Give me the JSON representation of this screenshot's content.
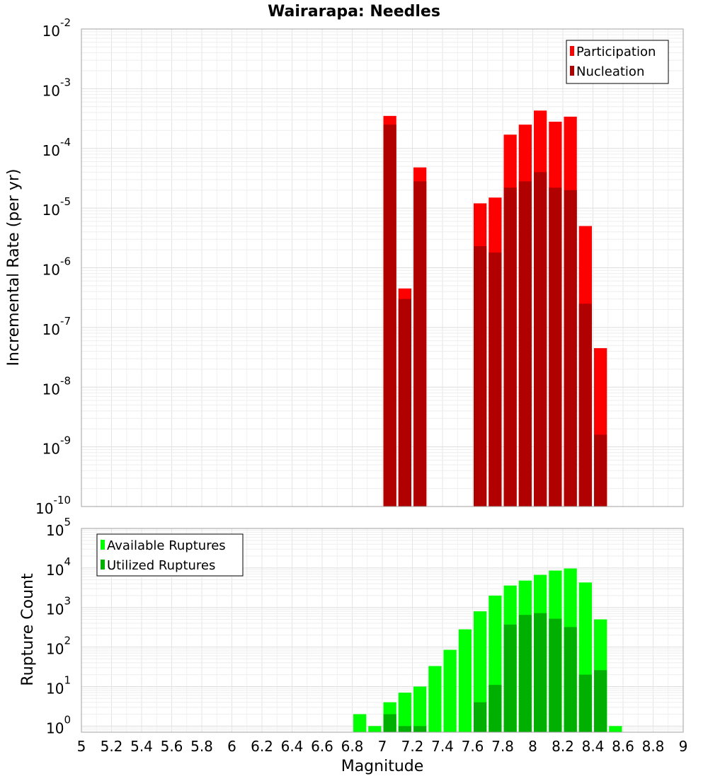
{
  "chart": {
    "title": "Wairarapa: Needles",
    "xlabel": "Magnitude",
    "top_ylabel": "Incremental Rate (per yr)",
    "bottom_ylabel": "Rupture Count"
  },
  "chart_data": [
    {
      "type": "bar",
      "panel": "top",
      "log_y": true,
      "grid": true,
      "legend_position": "top-right",
      "xlim": [
        5,
        9
      ],
      "ylim": [
        1e-10,
        0.01
      ],
      "x_ticks": [
        "5",
        "5.2",
        "5.4",
        "5.6",
        "5.8",
        "6",
        "6.2",
        "6.4",
        "6.6",
        "6.8",
        "7",
        "7.2",
        "7.4",
        "7.6",
        "7.8",
        "8",
        "8.2",
        "8.4",
        "8.6",
        "8.8",
        "9"
      ],
      "y_tick_bases": [
        "10",
        "10",
        "10",
        "10",
        "10",
        "10",
        "10",
        "10",
        "10"
      ],
      "y_tick_exponents": [
        "-10",
        "-9",
        "-8",
        "-7",
        "-6",
        "-5",
        "-4",
        "-3",
        "-2"
      ],
      "x": [
        7.05,
        7.15,
        7.25,
        7.65,
        7.75,
        7.85,
        7.95,
        8.05,
        8.15,
        8.25,
        8.35,
        8.45
      ],
      "series": [
        {
          "name": "Participation",
          "color": "#ff0000",
          "values": [
            0.00035,
            4.5e-07,
            4.8e-05,
            1.2e-05,
            1.5e-05,
            0.00017,
            0.00025,
            0.00043,
            0.00028,
            0.00034,
            5e-06,
            4.5e-08
          ]
        },
        {
          "name": "Nucleation",
          "color": "#b00000",
          "values": [
            0.00025,
            3e-07,
            2.8e-05,
            2.3e-06,
            1.8e-06,
            2.2e-05,
            2.8e-05,
            4e-05,
            2.2e-05,
            2e-05,
            2.5e-07,
            1.6e-09
          ]
        }
      ]
    },
    {
      "type": "bar",
      "panel": "bottom",
      "log_y": true,
      "grid": true,
      "legend_position": "top-left",
      "xlim": [
        5,
        9
      ],
      "ylim": [
        0.7,
        100000.0
      ],
      "x_ticks": [
        "5",
        "5.2",
        "5.4",
        "5.6",
        "5.8",
        "6",
        "6.2",
        "6.4",
        "6.6",
        "6.8",
        "7",
        "7.2",
        "7.4",
        "7.6",
        "7.8",
        "8",
        "8.2",
        "8.4",
        "8.6",
        "8.8",
        "9"
      ],
      "y_tick_bases": [
        "10",
        "10",
        "10",
        "10",
        "10",
        "10"
      ],
      "y_tick_exponents": [
        "0",
        "1",
        "2",
        "3",
        "4",
        "5"
      ],
      "x": [
        6.85,
        6.95,
        7.05,
        7.15,
        7.25,
        7.35,
        7.45,
        7.55,
        7.65,
        7.75,
        7.85,
        7.95,
        8.05,
        8.15,
        8.25,
        8.35,
        8.45,
        8.55
      ],
      "series": [
        {
          "name": "Available Ruptures",
          "color": "#00ff00",
          "values": [
            2,
            1,
            4,
            7,
            10,
            33,
            85,
            280,
            800,
            2000,
            3600,
            4800,
            6700,
            8600,
            9700,
            4300,
            500,
            1
          ]
        },
        {
          "name": "Utilized Ruptures",
          "color": "#00b000",
          "values": [
            0,
            0,
            2,
            1,
            1,
            0,
            0,
            0,
            4,
            11,
            370,
            650,
            720,
            520,
            320,
            20,
            26,
            0
          ]
        }
      ]
    }
  ]
}
